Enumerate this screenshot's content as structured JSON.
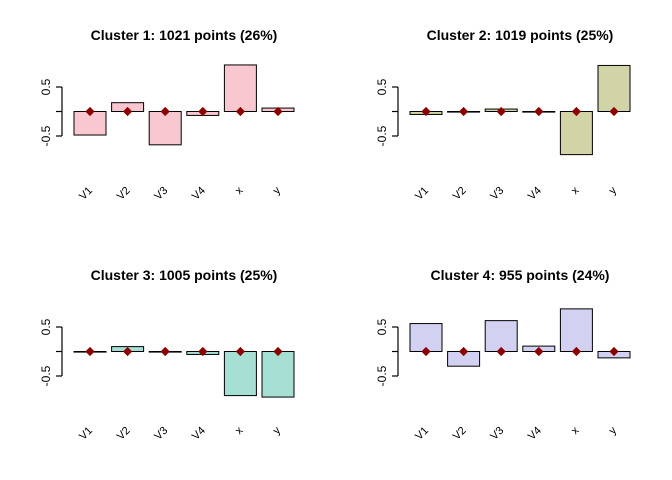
{
  "figure": {
    "background": "#ffffff",
    "axis_color": "#000000",
    "marker_shape": "diamond",
    "marker_color": "#8b0000"
  },
  "chart_data": [
    {
      "type": "bar",
      "title": "Cluster 1: 1021 points (26%)",
      "categories": [
        "V1",
        "V2",
        "V3",
        "V4",
        "x",
        "y"
      ],
      "values": [
        -0.48,
        0.18,
        -0.68,
        -0.08,
        0.95,
        0.07
      ],
      "bar_color": "#f9c7d0",
      "bar_border": "#000000",
      "marker_value": 0,
      "marker_color": "#8b0000",
      "ylim": [
        -1.05,
        1.1
      ],
      "yticks": [
        -0.5,
        0,
        0.5
      ],
      "ytick_labels": [
        "-0.5",
        "",
        "0.5"
      ],
      "xlabel": "",
      "ylabel": "",
      "grid": false,
      "legend": "none"
    },
    {
      "type": "bar",
      "title": "Cluster 2: 1019 points (25%)",
      "categories": [
        "V1",
        "V2",
        "V3",
        "V4",
        "x",
        "y"
      ],
      "values": [
        -0.06,
        -0.01,
        0.05,
        -0.01,
        -0.88,
        0.94
      ],
      "bar_color": "#d0d4a6",
      "bar_border": "#000000",
      "marker_value": 0,
      "marker_color": "#8b0000",
      "ylim": [
        -1.05,
        1.1
      ],
      "yticks": [
        -0.5,
        0,
        0.5
      ],
      "ytick_labels": [
        "-0.5",
        "",
        "0.5"
      ],
      "xlabel": "",
      "ylabel": "",
      "grid": false,
      "legend": "none"
    },
    {
      "type": "bar",
      "title": "Cluster 3: 1005 points (25%)",
      "categories": [
        "V1",
        "V2",
        "V3",
        "V4",
        "x",
        "y"
      ],
      "values": [
        -0.01,
        0.1,
        -0.01,
        -0.06,
        -0.9,
        -0.93
      ],
      "bar_color": "#a6e0d4",
      "bar_border": "#000000",
      "marker_value": 0,
      "marker_color": "#8b0000",
      "ylim": [
        -1.05,
        1.1
      ],
      "yticks": [
        -0.5,
        0,
        0.5
      ],
      "ytick_labels": [
        "-0.5",
        "",
        "0.5"
      ],
      "xlabel": "",
      "ylabel": "",
      "grid": false,
      "legend": "none"
    },
    {
      "type": "bar",
      "title": "Cluster 4: 955 points (24%)",
      "categories": [
        "V1",
        "V2",
        "V3",
        "V4",
        "x",
        "y"
      ],
      "values": [
        0.57,
        -0.3,
        0.63,
        0.11,
        0.87,
        -0.13
      ],
      "bar_color": "#d3d1f1",
      "bar_border": "#000000",
      "marker_value": 0,
      "marker_color": "#8b0000",
      "ylim": [
        -1.05,
        1.1
      ],
      "yticks": [
        -0.5,
        0,
        0.5
      ],
      "ytick_labels": [
        "-0.5",
        "",
        "0.5"
      ],
      "xlabel": "",
      "ylabel": "",
      "grid": false,
      "legend": "none"
    }
  ]
}
